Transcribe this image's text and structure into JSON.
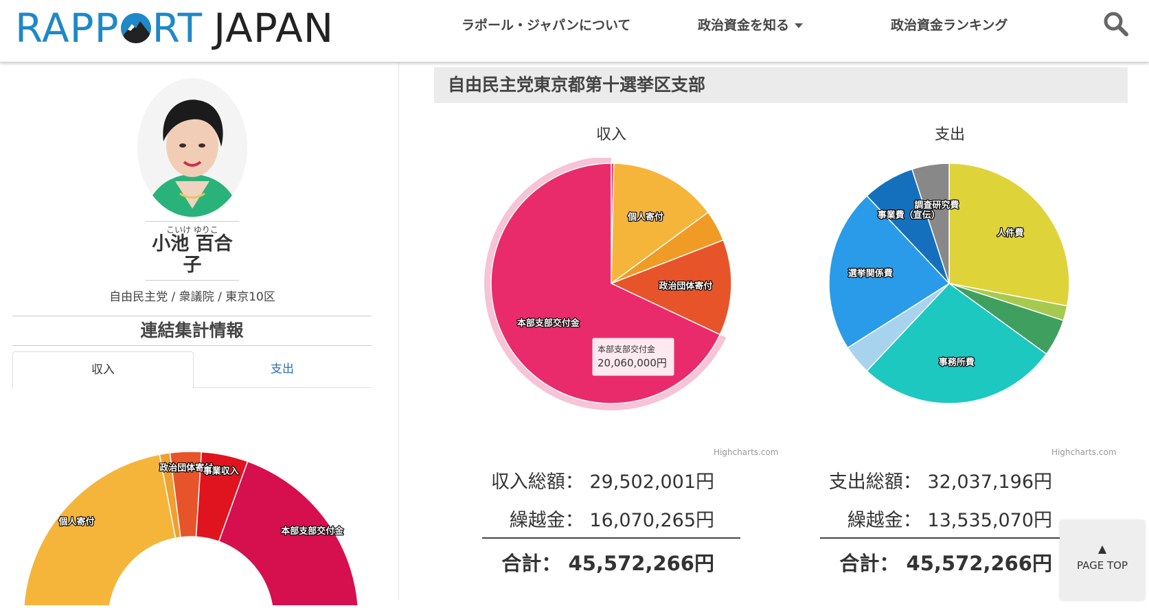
{
  "header": {
    "logo_left": "RAPP",
    "logo_right": "RT",
    "logo_word2": "JAPAN",
    "nav": [
      {
        "label": "ラポール・ジャパンについて"
      },
      {
        "label": "政治資金を知る"
      },
      {
        "label": "政治資金ランキング"
      }
    ]
  },
  "profile": {
    "ruby": "こいけ ゆりこ",
    "name_line1": "小池 百合",
    "name_line2": "子",
    "affiliation": "自由民主党 / 衆議院 / 東京10区",
    "section_title": "連結集計情報",
    "tabs": [
      {
        "label": "収入"
      },
      {
        "label": "支出"
      }
    ]
  },
  "donut_chart": {
    "type": "pie",
    "segments": [
      {
        "label": "個人寄付",
        "value": 44,
        "color": "#f5b53b"
      },
      {
        "label": "",
        "value": 2,
        "color": "#f0a030"
      },
      {
        "label": "政治団体寄付",
        "value": 6,
        "color": "#e85429"
      },
      {
        "label": "事業収入",
        "value": 9,
        "color": "#e0141f"
      },
      {
        "label": "本部支部交付金",
        "value": 39,
        "color": "#d60f4f"
      }
    ]
  },
  "org": {
    "title": "自由民主党東京都第十選挙区支部"
  },
  "chart_data": [
    {
      "type": "pie",
      "title": "収入",
      "credit": "Highcharts.com",
      "slices": [
        {
          "label": "",
          "value": 100000,
          "color": "#ea2b6b"
        },
        {
          "label": "個人寄付",
          "value": 4300000,
          "color": "#f5b53b"
        },
        {
          "label": "",
          "value": 1242001,
          "color": "#f09b25"
        },
        {
          "label": "政治団体寄付",
          "value": 3800000,
          "color": "#e85429"
        },
        {
          "label": "本部支部交付金",
          "value": 20060000,
          "color": "#ea2b6b",
          "highlighted": true
        }
      ],
      "tooltip": {
        "label": "本部支部交付金",
        "value": "20,060,000円"
      }
    },
    {
      "type": "pie",
      "title": "支出",
      "credit": "Highcharts.com",
      "slices": [
        {
          "label": "人件費",
          "value": 28,
          "color": "#dfd33a"
        },
        {
          "label": "",
          "value": 2,
          "color": "#a6c94f"
        },
        {
          "label": "",
          "value": 5,
          "color": "#3f9f5f"
        },
        {
          "label": "事務所費",
          "value": 27,
          "color": "#1cc8c0"
        },
        {
          "label": "",
          "value": 4,
          "color": "#a8d3ef"
        },
        {
          "label": "選挙関係費",
          "value": 22,
          "color": "#2a9be9"
        },
        {
          "label": "事業費（宣伝）",
          "value": 7,
          "color": "#1470bd"
        },
        {
          "label": "調査研究費",
          "value": 5,
          "color": "#888888"
        }
      ]
    }
  ],
  "totals": {
    "income": {
      "label": "収入総額：",
      "value": "29,502,001円"
    },
    "income_carry": {
      "label": "繰越金：",
      "value": "16,070,265円"
    },
    "income_sum": {
      "label": "合計：",
      "value": "45,572,266円"
    },
    "expense": {
      "label": "支出総額：",
      "value": "32,037,196円"
    },
    "expense_carry": {
      "label": "繰越金：",
      "value": "13,535,070円"
    },
    "expense_sum": {
      "label": "合計：",
      "value": "45,572,266円"
    }
  },
  "page_top": {
    "arrow": "▲",
    "label": "PAGE TOP"
  }
}
